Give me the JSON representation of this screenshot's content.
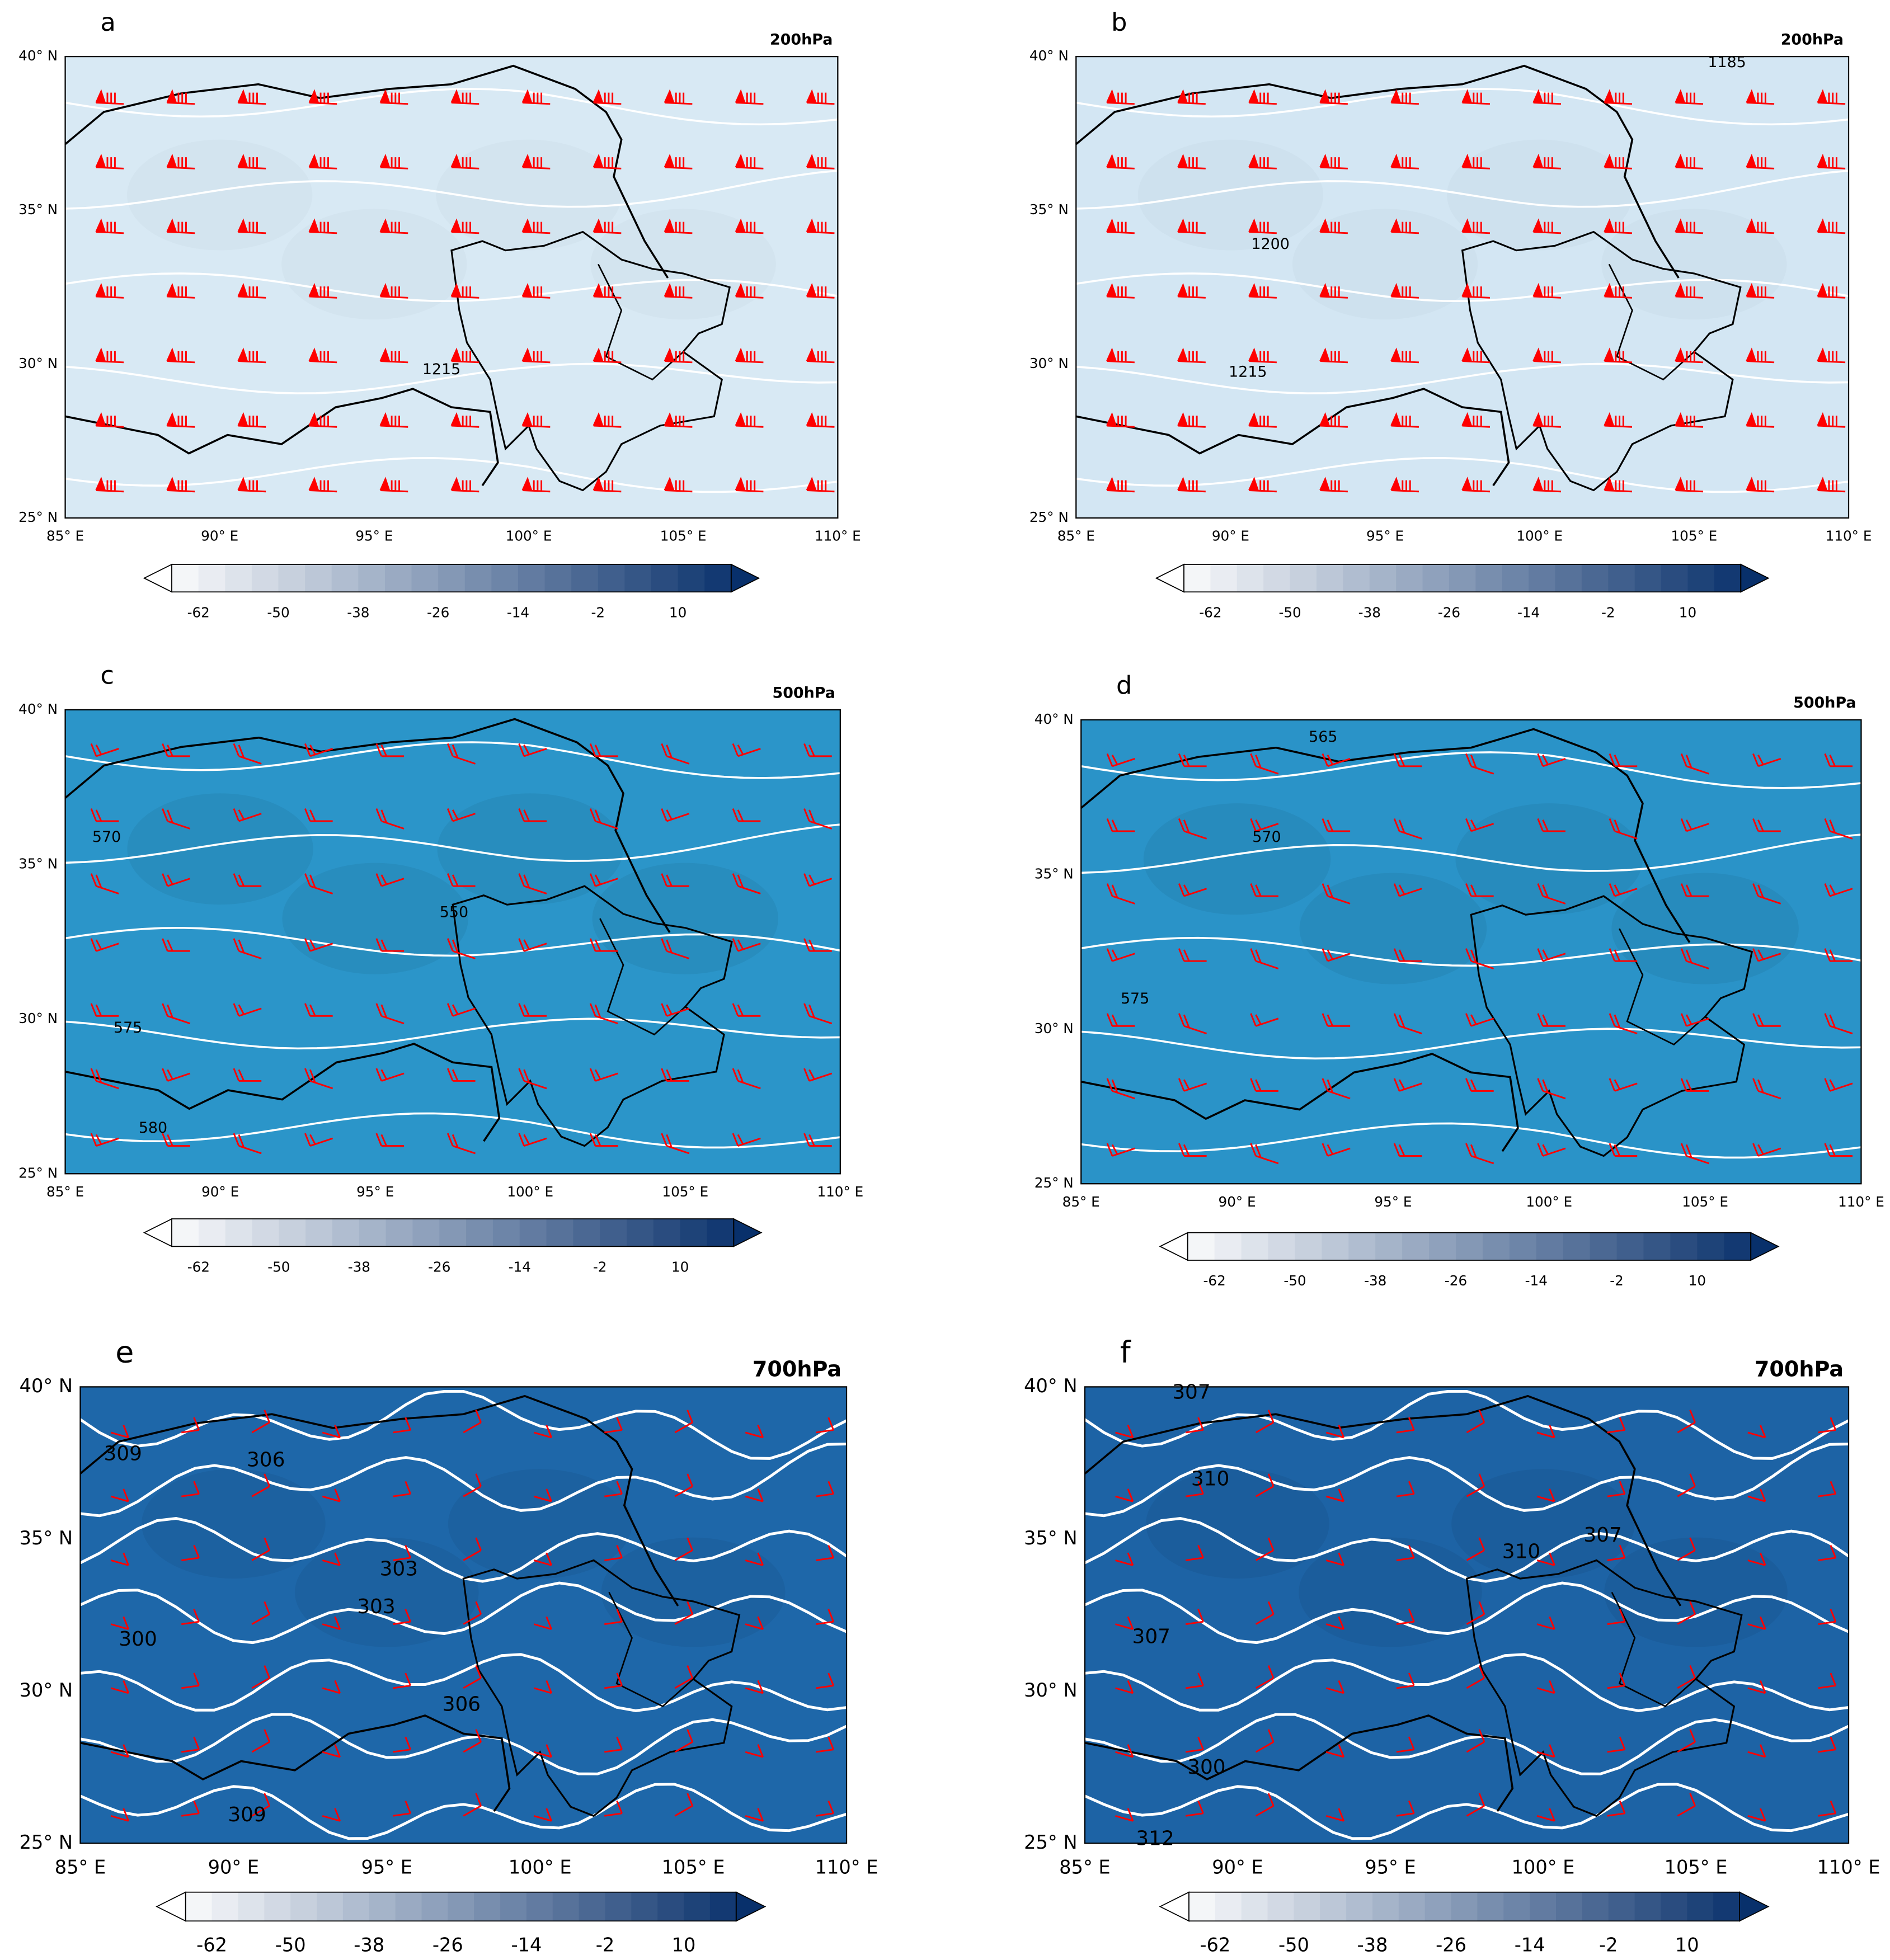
{
  "panels": [
    {
      "label": "a",
      "level": "200hPa",
      "contour_labels": [
        "1215"
      ]
    },
    {
      "label": "b",
      "level": "200hPa",
      "contour_labels": [
        "1185",
        "1200",
        "1215"
      ]
    },
    {
      "label": "c",
      "level": "500hPa",
      "contour_labels": [
        "570",
        "550",
        "575",
        "580"
      ]
    },
    {
      "label": "d",
      "level": "500hPa",
      "contour_labels": [
        "565",
        "570",
        "575"
      ]
    },
    {
      "label": "e",
      "level": "700hPa",
      "contour_labels": [
        "309",
        "306",
        "303",
        "303",
        "300",
        "306",
        "309"
      ]
    },
    {
      "label": "f",
      "level": "700hPa",
      "contour_labels": [
        "307",
        "310",
        "310",
        "307",
        "307",
        "300",
        "312"
      ]
    }
  ],
  "lat_labels": [
    "40° N",
    "35° N",
    "30° N",
    "25° N"
  ],
  "lon_labels": [
    "85° E",
    "90° E",
    "95° E",
    "100° E",
    "105° E",
    "110° E"
  ],
  "colorbar_labels": [
    "-62",
    "-50",
    "-38",
    "-26",
    "-14",
    "-2",
    "10"
  ]
}
